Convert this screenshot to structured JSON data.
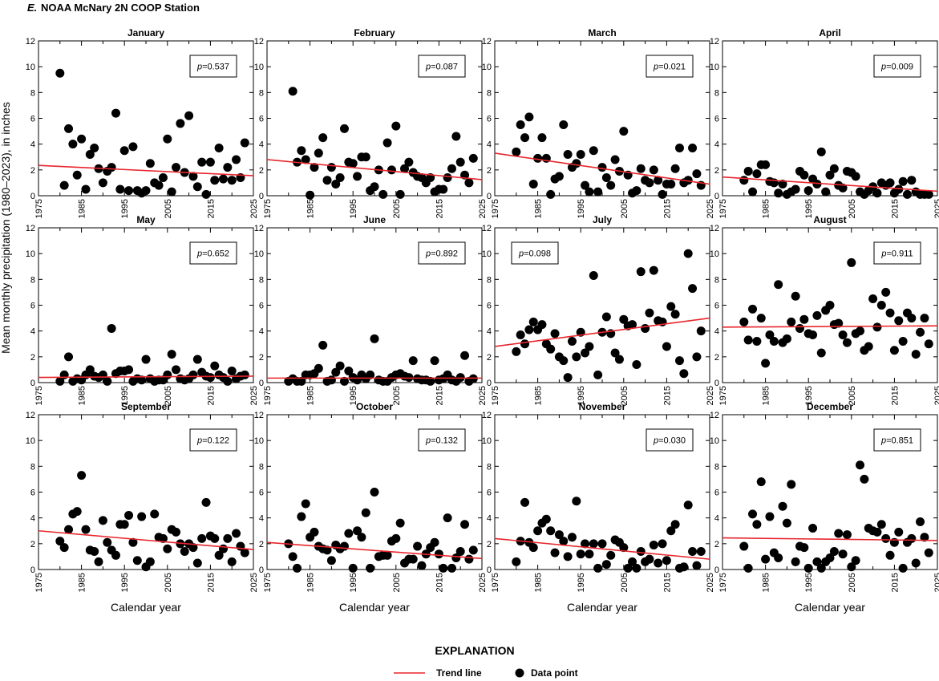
{
  "figure": {
    "title_letter": "E.",
    "title_text": "NOAA McNary 2N COOP Station",
    "ylabel": "Mean monthly precipitation (1980–2023), in inches",
    "xlabel": "Calendar year"
  },
  "legend": {
    "title": "EXPLANATION",
    "trend_label": "Trend line",
    "point_label": "Data point",
    "trend_color": "#e8262d",
    "point_color": "#000000"
  },
  "chart_data": [
    {
      "type": "scatter",
      "title": "January",
      "p_prefix": "p",
      "p_value": "=0.537",
      "trend": [
        2.35,
        1.55
      ],
      "x_start": 1980,
      "y": [
        9.5,
        0.8,
        5.2,
        4.0,
        1.6,
        4.4,
        0.5,
        3.2,
        3.7,
        2.1,
        1.0,
        1.9,
        2.2,
        6.4,
        0.5,
        3.5,
        0.4,
        3.8,
        0.4,
        0.2,
        0.4,
        2.5,
        1.0,
        0.8,
        1.4,
        4.4,
        0.3,
        2.2,
        5.6,
        1.8,
        6.2,
        1.5,
        0.7,
        2.6,
        0.1,
        2.6,
        1.2,
        3.7,
        1.3,
        2.2,
        1.2,
        2.8,
        1.4,
        4.1
      ]
    },
    {
      "type": "scatter",
      "title": "February",
      "p_prefix": "p",
      "p_value": "=0.087",
      "trend": [
        2.8,
        1.25
      ],
      "x_start": 1981,
      "y": [
        8.1,
        2.6,
        3.5,
        2.8,
        0.05,
        2.2,
        3.3,
        4.5,
        1.2,
        2.2,
        0.9,
        1.4,
        5.2,
        2.6,
        2.5,
        1.5,
        3.0,
        3.0,
        0.4,
        0.7,
        2.0,
        0.1,
        4.1,
        2.0,
        5.4,
        0.1,
        2.1,
        2.6,
        1.8,
        1.5,
        1.4,
        1.0,
        1.4,
        0.3,
        0.5,
        0.5,
        1.4,
        2.1,
        4.6,
        2.6,
        1.6,
        1.0,
        2.9
      ]
    },
    {
      "type": "scatter",
      "title": "March",
      "p_prefix": "p",
      "p_value": "=0.021",
      "trend": [
        3.3,
        0.9
      ],
      "x_start": 1980,
      "y": [
        3.4,
        5.5,
        4.5,
        6.1,
        0.9,
        2.9,
        4.5,
        2.9,
        0.1,
        1.3,
        1.5,
        5.5,
        3.2,
        2.2,
        2.5,
        3.2,
        0.8,
        0.3,
        3.5,
        0.3,
        2.2,
        1.4,
        0.8,
        2.8,
        1.9,
        5.0,
        1.6,
        0.2,
        0.4,
        2.1,
        1.2,
        1.0,
        2.0,
        1.2,
        0.1,
        0.9,
        0.9,
        2.1,
        3.7,
        1.0,
        1.2,
        3.7,
        1.7,
        0.8
      ]
    },
    {
      "type": "scatter",
      "title": "April",
      "p_prefix": "p",
      "p_value": "=0.009",
      "trend": [
        1.45,
        0.35
      ],
      "x_start": 1980,
      "y": [
        1.2,
        1.9,
        0.3,
        1.7,
        2.4,
        2.4,
        1.1,
        1.0,
        0.2,
        0.9,
        0.1,
        0.3,
        0.5,
        1.9,
        1.6,
        0.4,
        1.3,
        0.9,
        3.4,
        0.3,
        1.6,
        2.1,
        0.8,
        0.6,
        1.9,
        1.8,
        1.5,
        0.3,
        0.1,
        0.4,
        0.7,
        0.2,
        1.0,
        0.8,
        1.0,
        0.2,
        0.5,
        1.1,
        0.1,
        1.2,
        0.3,
        0.1,
        0.1,
        0.1
      ]
    },
    {
      "type": "scatter",
      "title": "May",
      "p_prefix": "p",
      "p_value": "=0.652",
      "trend": [
        0.4,
        0.5
      ],
      "x_start": 1980,
      "y": [
        0.1,
        0.6,
        2.0,
        0.1,
        0.3,
        0.2,
        0.6,
        1.0,
        0.5,
        0.4,
        0.6,
        0.1,
        4.2,
        0.7,
        0.9,
        0.9,
        1.0,
        0.1,
        0.3,
        0.2,
        1.8,
        0.3,
        0.1,
        0.2,
        0.2,
        0.6,
        2.2,
        1.0,
        0.3,
        0.2,
        0.3,
        0.6,
        1.8,
        0.8,
        0.5,
        0.4,
        1.3,
        0.6,
        0.4,
        0.1,
        0.9,
        0.3,
        0.5,
        0.6
      ]
    },
    {
      "type": "scatter",
      "title": "June",
      "p_prefix": "p",
      "p_value": "=0.892",
      "trend": [
        0.35,
        0.35
      ],
      "x_start": 1980,
      "y": [
        0.1,
        0.3,
        0.1,
        0.1,
        0.6,
        0.6,
        0.7,
        1.1,
        2.9,
        0.1,
        0.2,
        0.8,
        1.3,
        0.1,
        0.9,
        0.4,
        0.2,
        0.6,
        0.3,
        0.6,
        3.4,
        0.2,
        0.1,
        0.1,
        0.4,
        0.6,
        0.7,
        0.5,
        0.4,
        1.7,
        0.3,
        0.2,
        0.2,
        0.1,
        1.7,
        0.2,
        0.3,
        0.6,
        0.2,
        0.1,
        0.4,
        2.1,
        0.1,
        0.3
      ]
    },
    {
      "type": "scatter",
      "title": "July",
      "p_prefix": "p",
      "p_value": "=0.098",
      "trend": [
        2.8,
        5.0
      ],
      "x_start": 1980,
      "y": [
        2.4,
        3.7,
        3.0,
        4.1,
        4.7,
        4.1,
        4.5,
        3.0,
        2.6,
        3.8,
        2.0,
        1.7,
        0.4,
        3.2,
        2.0,
        3.9,
        2.3,
        2.8,
        8.3,
        0.6,
        3.9,
        5.1,
        3.8,
        2.3,
        1.8,
        4.9,
        4.4,
        4.5,
        1.4,
        8.6,
        4.2,
        5.4,
        8.7,
        4.8,
        4.7,
        2.8,
        5.9,
        5.3,
        1.7,
        0.7,
        10.0,
        7.3,
        2.0,
        4.0
      ]
    },
    {
      "type": "scatter",
      "title": "August",
      "p_prefix": "p",
      "p_value": "=0.911",
      "trend": [
        4.3,
        4.4
      ],
      "x_start": 1980,
      "y": [
        4.7,
        3.3,
        5.7,
        3.2,
        5.0,
        1.5,
        3.7,
        3.2,
        7.6,
        3.1,
        3.4,
        4.7,
        6.7,
        4.2,
        4.9,
        3.8,
        3.7,
        5.2,
        2.3,
        5.6,
        6.0,
        4.5,
        4.6,
        3.7,
        3.1,
        9.3,
        3.8,
        4.0,
        2.5,
        2.8,
        6.5,
        4.3,
        6.0,
        7.0,
        5.4,
        2.5,
        4.8,
        3.2,
        5.4,
        5.0,
        2.2,
        3.9,
        5.0,
        3.0
      ]
    },
    {
      "type": "scatter",
      "title": "September",
      "p_prefix": "p",
      "p_value": "=0.122",
      "trend": [
        3.0,
        1.55
      ],
      "x_start": 1980,
      "y": [
        2.2,
        1.7,
        3.1,
        4.3,
        4.5,
        7.3,
        3.1,
        1.5,
        1.4,
        0.6,
        3.8,
        2.1,
        1.5,
        1.1,
        3.5,
        3.5,
        4.2,
        2.1,
        0.7,
        4.1,
        0.2,
        0.6,
        4.3,
        2.5,
        2.4,
        1.6,
        3.1,
        2.9,
        2.0,
        1.4,
        2.0,
        1.7,
        0.5,
        2.4,
        5.2,
        2.6,
        2.4,
        1.1,
        1.6,
        2.4,
        0.6,
        2.8,
        1.8,
        1.3
      ]
    },
    {
      "type": "scatter",
      "title": "October",
      "p_prefix": "p",
      "p_value": "=0.132",
      "trend": [
        2.1,
        0.85
      ],
      "x_start": 1980,
      "y": [
        2.0,
        1.0,
        0.1,
        4.1,
        5.1,
        2.5,
        2.9,
        1.8,
        1.6,
        1.5,
        0.7,
        1.9,
        1.6,
        1.8,
        2.8,
        0.1,
        3.0,
        2.5,
        4.4,
        0.1,
        6.0,
        1.0,
        1.1,
        1.1,
        2.2,
        2.4,
        3.6,
        0.5,
        0.8,
        0.8,
        1.8,
        0.3,
        1.2,
        1.7,
        2.1,
        1.2,
        0.1,
        4.0,
        0.1,
        0.9,
        1.4,
        3.5,
        0.8,
        1.5
      ]
    },
    {
      "type": "scatter",
      "title": "November",
      "p_prefix": "p",
      "p_value": "=0.030",
      "trend": [
        2.4,
        0.8
      ],
      "x_start": 1980,
      "y": [
        0.6,
        2.2,
        5.2,
        2.1,
        1.7,
        3.0,
        3.6,
        3.9,
        3.0,
        1.3,
        2.7,
        2.2,
        1.0,
        2.5,
        5.3,
        1.2,
        2.0,
        1.2,
        2.0,
        0.1,
        2.0,
        0.4,
        1.1,
        2.3,
        2.1,
        1.7,
        0.1,
        0.6,
        0.1,
        1.4,
        0.6,
        0.8,
        1.9,
        0.5,
        2.0,
        0.7,
        3.0,
        3.5,
        0.1,
        0.2,
        5.0,
        1.4,
        0.3,
        1.4
      ]
    },
    {
      "type": "scatter",
      "title": "December",
      "p_prefix": "p",
      "p_value": "=0.851",
      "trend": [
        2.45,
        2.25
      ],
      "x_start": 1980,
      "y": [
        1.8,
        0.1,
        4.3,
        3.5,
        6.8,
        0.8,
        4.1,
        1.3,
        0.9,
        4.9,
        3.6,
        6.6,
        0.6,
        1.8,
        1.7,
        0.1,
        3.2,
        0.6,
        0.1,
        0.6,
        0.9,
        1.4,
        2.8,
        1.2,
        2.7,
        0.2,
        0.7,
        8.1,
        7.0,
        3.2,
        3.0,
        2.9,
        3.5,
        2.4,
        1.1,
        2.1,
        2.9,
        0.1,
        2.1,
        2.4,
        0.5,
        3.7,
        2.5,
        1.3
      ]
    }
  ],
  "axes": {
    "y_ticks": [
      "0",
      "2",
      "4",
      "6",
      "8",
      "10",
      "12"
    ],
    "y_values": [
      0,
      2,
      4,
      6,
      8,
      10,
      12
    ],
    "x_ticks": [
      "1975",
      "1985",
      "1995",
      "2005",
      "2015",
      "2025"
    ],
    "x_values": [
      1975,
      1985,
      1995,
      2005,
      2015,
      2025
    ],
    "xlim": [
      1975,
      2025
    ],
    "ylim": [
      0,
      12
    ]
  }
}
